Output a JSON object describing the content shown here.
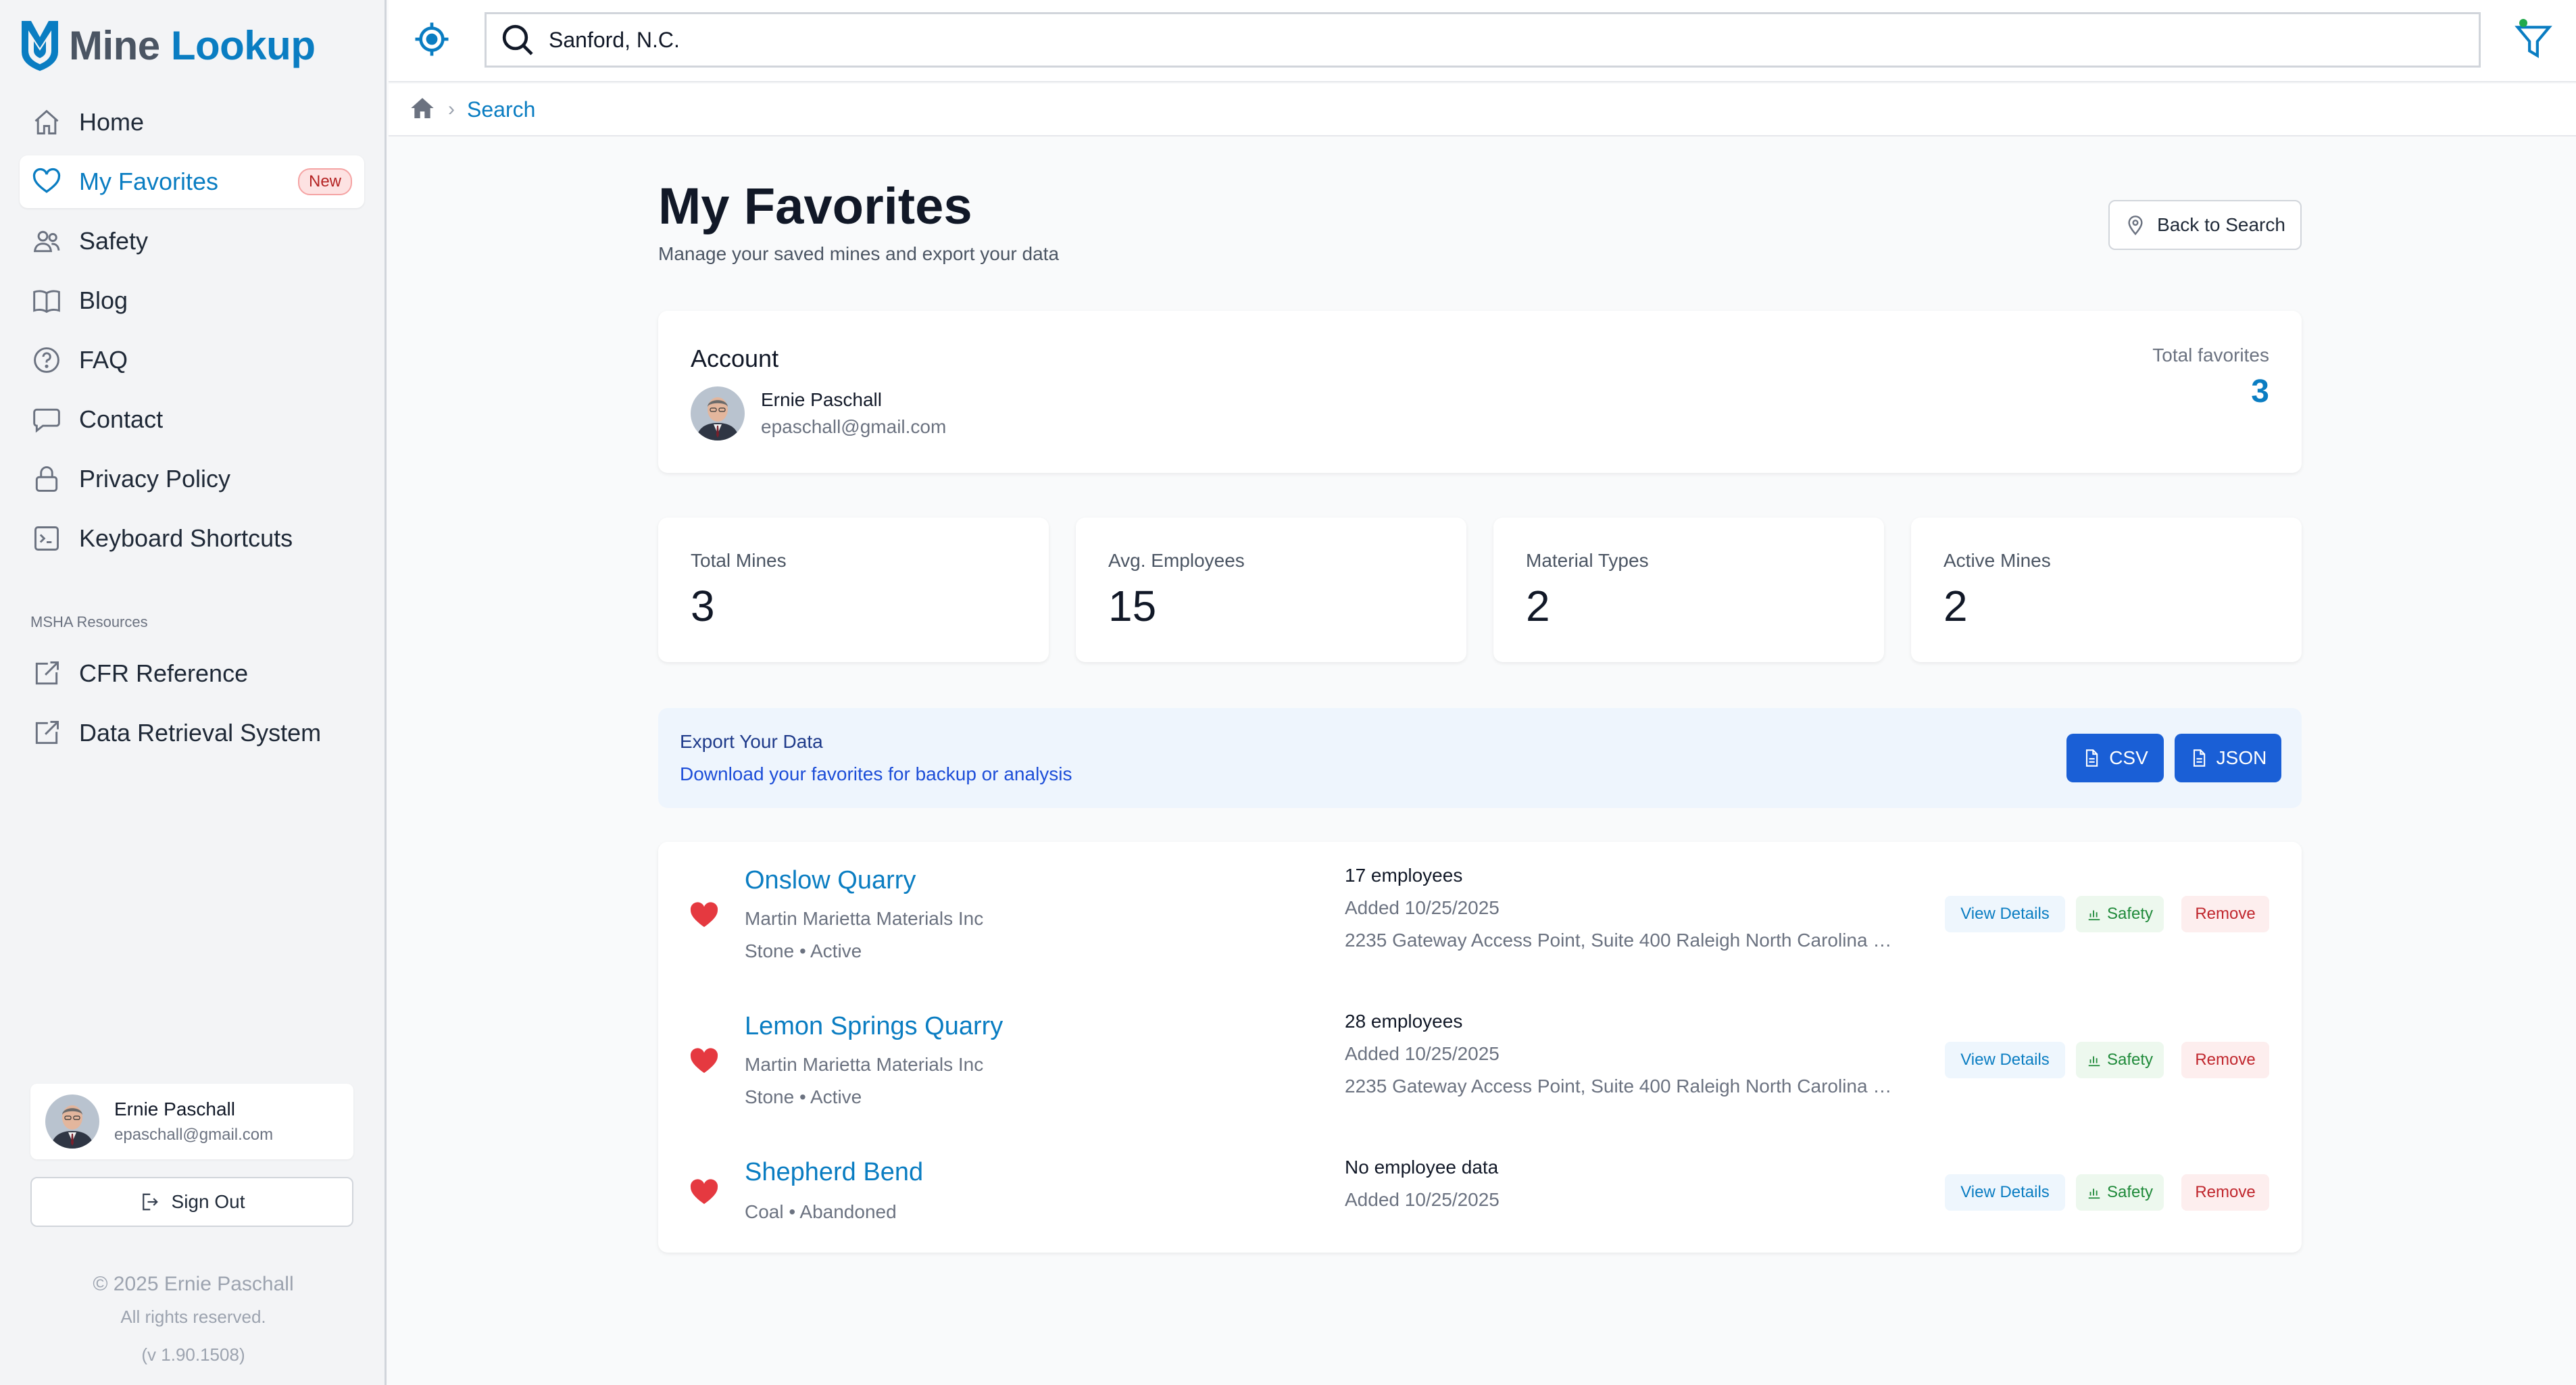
{
  "app": {
    "logo_mine": "Mine",
    "logo_lookup": "Lookup"
  },
  "sidebar": {
    "items": [
      {
        "label": "Home",
        "icon": "home-icon"
      },
      {
        "label": "My Favorites",
        "icon": "heart-icon",
        "badge": "New",
        "active": true
      },
      {
        "label": "Safety",
        "icon": "users-icon"
      },
      {
        "label": "Blog",
        "icon": "book-icon"
      },
      {
        "label": "FAQ",
        "icon": "help-circle-icon"
      },
      {
        "label": "Contact",
        "icon": "message-icon"
      },
      {
        "label": "Privacy Policy",
        "icon": "lock-icon"
      },
      {
        "label": "Keyboard Shortcuts",
        "icon": "terminal-icon"
      }
    ],
    "section_label": "MSHA Resources",
    "resources": [
      {
        "label": "CFR Reference",
        "icon": "external-link-icon"
      },
      {
        "label": "Data Retrieval System",
        "icon": "external-link-icon"
      }
    ],
    "user": {
      "name": "Ernie Paschall",
      "email": "epaschall@gmail.com"
    },
    "sign_out_label": "Sign Out",
    "footer": {
      "copyright": "© 2025 Ernie Paschall",
      "rights": "All rights reserved.",
      "version": "(v 1.90.1508)"
    }
  },
  "search": {
    "value": "Sanford, N.C."
  },
  "breadcrumb": {
    "current": "Search"
  },
  "page": {
    "title": "My Favorites",
    "subtitle": "Manage your saved mines and export your data",
    "back_label": "Back to Search"
  },
  "account": {
    "label": "Account",
    "name": "Ernie Paschall",
    "email": "epaschall@gmail.com",
    "total_label": "Total favorites",
    "total_value": "3"
  },
  "stats": [
    {
      "label": "Total Mines",
      "value": "3"
    },
    {
      "label": "Avg. Employees",
      "value": "15"
    },
    {
      "label": "Material Types",
      "value": "2"
    },
    {
      "label": "Active Mines",
      "value": "2"
    }
  ],
  "export": {
    "title": "Export Your Data",
    "subtitle": "Download your favorites for backup or analysis",
    "csv_label": "CSV",
    "json_label": "JSON"
  },
  "actions": {
    "view": "View Details",
    "safety": "Safety",
    "remove": "Remove"
  },
  "favorites": [
    {
      "name": "Onslow Quarry",
      "operator": "Martin Marietta Materials Inc",
      "type_status": "Stone • Active",
      "employees": "17 employees",
      "added": "Added 10/25/2025",
      "address": "2235 Gateway Access Point, Suite 400 Raleigh North Carolina 27..."
    },
    {
      "name": "Lemon Springs Quarry",
      "operator": "Martin Marietta Materials Inc",
      "type_status": "Stone • Active",
      "employees": "28 employees",
      "added": "Added 10/25/2025",
      "address": "2235 Gateway Access Point, Suite 400 Raleigh North Carolina 27..."
    },
    {
      "name": "Shepherd Bend",
      "type_status": "Coal • Abandoned",
      "employees": "No employee data",
      "added": "Added 10/25/2025"
    }
  ],
  "colors": {
    "brand": "#0a7dc2",
    "heart": "#e53940",
    "export_button": "#1a5fd6",
    "safety": "#1f8a3a",
    "remove": "#c0262d"
  }
}
